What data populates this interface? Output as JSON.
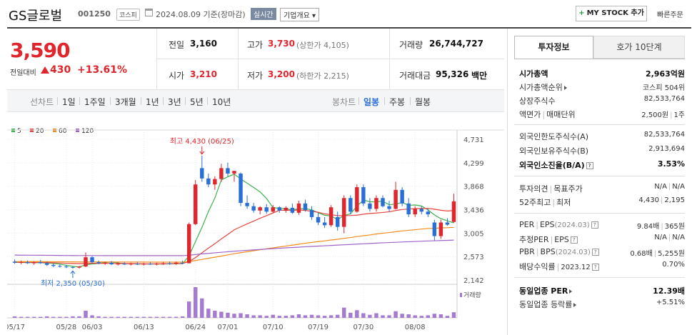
{
  "header": {
    "title": "GS글로벌",
    "code": "001250",
    "market": "코스피",
    "date_text": "2024.08.09 기준(장마감)",
    "realtime_label": "실시간",
    "company_label": "기업개요 ▾",
    "mystock_label": "MY STOCK 추가",
    "quick_order_label": "빠른주문"
  },
  "price": {
    "current": "3,590",
    "prev_label": "전일대비",
    "change": "430",
    "change_pct": "+13.61%"
  },
  "summary": {
    "prev_close_label": "전일",
    "prev_close": "3,160",
    "high_label": "고가",
    "high": "3,730",
    "upper_limit": "(상한가 4,105)",
    "volume_label": "거래량",
    "volume": "26,744,727",
    "open_label": "시가",
    "open": "3,210",
    "low_label": "저가",
    "low": "3,200",
    "lower_limit": "(하한가 2,215)",
    "amount_label": "거래대금",
    "amount": "95,326",
    "amount_unit": "백만"
  },
  "period_bar": {
    "line_label": "선차트",
    "periods": [
      "1일",
      "1주일",
      "3개월",
      "1년",
      "3년",
      "5년",
      "10년"
    ],
    "candle_label": "봉차트",
    "candles": [
      "일봉",
      "주봉",
      "월봉"
    ],
    "active_candle": "일봉"
  },
  "legend": [
    {
      "name": "5",
      "color": "#3cb44b"
    },
    {
      "name": "20",
      "color": "#e6443c"
    },
    {
      "name": "60",
      "color": "#f08c1e"
    },
    {
      "name": "120",
      "color": "#a064c8"
    }
  ],
  "chart_data": {
    "type": "candlestick",
    "y_ticks": [
      "4,731",
      "4,299",
      "3,868",
      "3,436",
      "3,005",
      "2,573",
      "2,142"
    ],
    "ylim": [
      2142,
      4731
    ],
    "x_ticks": [
      "05/17",
      "05/28",
      "06/03",
      "06/13",
      "06/24",
      "07/01",
      "07/10",
      "07/19",
      "07/30",
      "08/08"
    ],
    "high_annotation": "최고 4,430 (06/25)",
    "low_annotation": "최저 2,350 (05/30)",
    "volume_legend": "거래량",
    "up_color": "#e0252c",
    "down_color": "#2a6fd6",
    "candles": [
      {
        "o": 2480,
        "h": 2520,
        "l": 2440,
        "c": 2460
      },
      {
        "o": 2460,
        "h": 2500,
        "l": 2430,
        "c": 2470
      },
      {
        "o": 2470,
        "h": 2500,
        "l": 2440,
        "c": 2450
      },
      {
        "o": 2450,
        "h": 2490,
        "l": 2420,
        "c": 2470
      },
      {
        "o": 2470,
        "h": 2510,
        "l": 2440,
        "c": 2450
      },
      {
        "o": 2450,
        "h": 2480,
        "l": 2400,
        "c": 2420
      },
      {
        "o": 2420,
        "h": 2450,
        "l": 2380,
        "c": 2400
      },
      {
        "o": 2400,
        "h": 2430,
        "l": 2370,
        "c": 2390
      },
      {
        "o": 2390,
        "h": 2420,
        "l": 2360,
        "c": 2380
      },
      {
        "o": 2380,
        "h": 2400,
        "l": 2350,
        "c": 2370
      },
      {
        "o": 2370,
        "h": 2400,
        "l": 2350,
        "c": 2390
      },
      {
        "o": 2390,
        "h": 2650,
        "l": 2380,
        "c": 2560
      },
      {
        "o": 2560,
        "h": 2580,
        "l": 2450,
        "c": 2470
      },
      {
        "o": 2470,
        "h": 2500,
        "l": 2430,
        "c": 2450
      },
      {
        "o": 2450,
        "h": 2480,
        "l": 2420,
        "c": 2460
      },
      {
        "o": 2460,
        "h": 2490,
        "l": 2420,
        "c": 2430
      },
      {
        "o": 2430,
        "h": 2470,
        "l": 2410,
        "c": 2440
      },
      {
        "o": 2440,
        "h": 2470,
        "l": 2420,
        "c": 2430
      },
      {
        "o": 2430,
        "h": 2460,
        "l": 2410,
        "c": 2440
      },
      {
        "o": 2440,
        "h": 2470,
        "l": 2420,
        "c": 2430
      },
      {
        "o": 2430,
        "h": 2460,
        "l": 2410,
        "c": 2440
      },
      {
        "o": 2440,
        "h": 2470,
        "l": 2420,
        "c": 2430
      },
      {
        "o": 2430,
        "h": 2460,
        "l": 2410,
        "c": 2440
      },
      {
        "o": 2440,
        "h": 2470,
        "l": 2420,
        "c": 2450
      },
      {
        "o": 2450,
        "h": 2480,
        "l": 2420,
        "c": 2440
      },
      {
        "o": 2440,
        "h": 2480,
        "l": 2420,
        "c": 2460
      },
      {
        "o": 2460,
        "h": 2500,
        "l": 2430,
        "c": 2450
      },
      {
        "o": 2450,
        "h": 3200,
        "l": 2450,
        "c": 3170
      },
      {
        "o": 3170,
        "h": 3980,
        "l": 3150,
        "c": 3900
      },
      {
        "o": 4200,
        "h": 4430,
        "l": 3950,
        "c": 4010
      },
      {
        "o": 4010,
        "h": 4100,
        "l": 3850,
        "c": 3900
      },
      {
        "o": 3900,
        "h": 4050,
        "l": 3800,
        "c": 4000
      },
      {
        "o": 4000,
        "h": 4280,
        "l": 3950,
        "c": 4200
      },
      {
        "o": 4200,
        "h": 4300,
        "l": 4050,
        "c": 4100
      },
      {
        "o": 4100,
        "h": 4150,
        "l": 3950,
        "c": 4150
      },
      {
        "o": 4100,
        "h": 4120,
        "l": 3500,
        "c": 3560
      },
      {
        "o": 3560,
        "h": 3700,
        "l": 3450,
        "c": 3500
      },
      {
        "o": 3500,
        "h": 3560,
        "l": 3380,
        "c": 3420
      },
      {
        "o": 3420,
        "h": 3500,
        "l": 3350,
        "c": 3480
      },
      {
        "o": 3480,
        "h": 3540,
        "l": 3360,
        "c": 3400
      },
      {
        "o": 3400,
        "h": 3520,
        "l": 3380,
        "c": 3480
      },
      {
        "o": 3480,
        "h": 3500,
        "l": 3380,
        "c": 3420
      },
      {
        "o": 3420,
        "h": 3500,
        "l": 3380,
        "c": 3470
      },
      {
        "o": 3470,
        "h": 3550,
        "l": 3360,
        "c": 3380
      },
      {
        "o": 3380,
        "h": 3600,
        "l": 3340,
        "c": 3550
      },
      {
        "o": 3550,
        "h": 3620,
        "l": 3400,
        "c": 3430
      },
      {
        "o": 3430,
        "h": 3500,
        "l": 3250,
        "c": 3300
      },
      {
        "o": 3300,
        "h": 3380,
        "l": 3150,
        "c": 3200
      },
      {
        "o": 3200,
        "h": 3300,
        "l": 3100,
        "c": 3150
      },
      {
        "o": 3150,
        "h": 3520,
        "l": 3120,
        "c": 3480
      },
      {
        "o": 3300,
        "h": 3400,
        "l": 3050,
        "c": 3120
      },
      {
        "o": 3120,
        "h": 3700,
        "l": 3000,
        "c": 3650
      },
      {
        "o": 3650,
        "h": 3700,
        "l": 3350,
        "c": 3400
      },
      {
        "o": 3400,
        "h": 3900,
        "l": 3380,
        "c": 3850
      },
      {
        "o": 3850,
        "h": 3900,
        "l": 3500,
        "c": 3550
      },
      {
        "o": 3550,
        "h": 3650,
        "l": 3400,
        "c": 3450
      },
      {
        "o": 3450,
        "h": 3700,
        "l": 3400,
        "c": 3650
      },
      {
        "o": 3650,
        "h": 3700,
        "l": 3480,
        "c": 3500
      },
      {
        "o": 3500,
        "h": 3600,
        "l": 3400,
        "c": 3450
      },
      {
        "o": 3450,
        "h": 3950,
        "l": 3440,
        "c": 3800
      },
      {
        "o": 3800,
        "h": 3850,
        "l": 3500,
        "c": 3550
      },
      {
        "o": 3550,
        "h": 3650,
        "l": 3300,
        "c": 3350
      },
      {
        "o": 3350,
        "h": 3500,
        "l": 3300,
        "c": 3450
      },
      {
        "o": 3450,
        "h": 3500,
        "l": 3350,
        "c": 3400
      },
      {
        "o": 3400,
        "h": 3450,
        "l": 3300,
        "c": 3350
      },
      {
        "o": 3200,
        "h": 3250,
        "l": 2870,
        "c": 2950
      },
      {
        "o": 2950,
        "h": 3250,
        "l": 2900,
        "c": 3200
      },
      {
        "o": 3200,
        "h": 3280,
        "l": 3140,
        "c": 3160
      },
      {
        "o": 3210,
        "h": 3730,
        "l": 3200,
        "c": 3590
      }
    ],
    "ma": {
      "ma5": [
        2465,
        2463,
        2462,
        2460,
        2461,
        2456,
        2448,
        2434,
        2413,
        2393,
        2384,
        2420,
        2438,
        2448,
        2464,
        2474,
        2455,
        2444,
        2440,
        2436,
        2436,
        2436,
        2436,
        2436,
        2439,
        2441,
        2442,
        2586,
        2848,
        3110,
        3400,
        3651,
        3982,
        4042,
        4090,
        4002,
        3922,
        3846,
        3762,
        3642,
        3474,
        3461,
        3450,
        3432,
        3452,
        3456,
        3432,
        3380,
        3333,
        3322,
        3252,
        3330,
        3360,
        3500,
        3613,
        3581,
        3581,
        3593,
        3526,
        3540,
        3568,
        3516,
        3522,
        3504,
        3432,
        3340,
        3270,
        3232,
        3191
      ],
      "ma20": [
        2470,
        2468,
        2467,
        2465,
        2464,
        2462,
        2459,
        2455,
        2450,
        2446,
        2443,
        2448,
        2449,
        2449,
        2448,
        2447,
        2445,
        2444,
        2443,
        2441,
        2439,
        2438,
        2439,
        2439,
        2442,
        2445,
        2446,
        2481,
        2554,
        2642,
        2729,
        2810,
        2898,
        2980,
        3065,
        3121,
        3175,
        3226,
        3278,
        3325,
        3375,
        3424,
        3426,
        3423,
        3430,
        3423,
        3405,
        3390,
        3359,
        3344,
        3326,
        3326,
        3329,
        3335,
        3353,
        3366,
        3374,
        3385,
        3398,
        3420,
        3439,
        3447,
        3455,
        3458,
        3460,
        3445,
        3425,
        3412,
        3420
      ],
      "ma60": [
        2480,
        2480,
        2480,
        2480,
        2480,
        2479,
        2478,
        2477,
        2476,
        2475,
        2474,
        2474,
        2474,
        2474,
        2474,
        2474,
        2473,
        2473,
        2472,
        2472,
        2472,
        2471,
        2471,
        2471,
        2471,
        2471,
        2471,
        2482,
        2500,
        2521,
        2541,
        2561,
        2582,
        2604,
        2626,
        2645,
        2663,
        2681,
        2699,
        2716,
        2733,
        2750,
        2767,
        2783,
        2801,
        2818,
        2834,
        2848,
        2862,
        2878,
        2891,
        2908,
        2923,
        2941,
        2957,
        2971,
        2988,
        3002,
        3015,
        3031,
        3045,
        3056,
        3068,
        3079,
        3089,
        3094,
        3100,
        3104,
        3110
      ],
      "ma120": [
        2600,
        2599,
        2598,
        2598,
        2597,
        2596,
        2595,
        2594,
        2593,
        2592,
        2591,
        2591,
        2591,
        2591,
        2590,
        2590,
        2590,
        2590,
        2590,
        2590,
        2590,
        2590,
        2590,
        2590,
        2590,
        2590,
        2590,
        2598,
        2610,
        2622,
        2632,
        2642,
        2652,
        2662,
        2672,
        2680,
        2688,
        2696,
        2704,
        2712,
        2719,
        2726,
        2733,
        2740,
        2747,
        2754,
        2760,
        2766,
        2772,
        2778,
        2784,
        2790,
        2796,
        2802,
        2808,
        2814,
        2820,
        2826,
        2831,
        2836,
        2841,
        2846,
        2851,
        2856,
        2861,
        2864,
        2868,
        2871,
        2876
      ]
    },
    "volume": [
      3,
      2,
      2,
      2,
      2,
      3,
      2,
      2,
      2,
      3,
      3,
      14,
      5,
      3,
      2,
      2,
      2,
      2,
      2,
      2,
      2,
      2,
      2,
      2,
      2,
      2,
      3,
      32,
      60,
      38,
      18,
      14,
      12,
      10,
      8,
      9,
      7,
      5,
      5,
      4,
      6,
      4,
      4,
      5,
      7,
      5,
      6,
      5,
      4,
      5,
      6,
      20,
      10,
      15,
      9,
      6,
      9,
      5,
      5,
      13,
      8,
      7,
      5,
      4,
      5,
      8,
      7,
      4,
      11
    ]
  },
  "right_panel": {
    "tab1": "투자정보",
    "tab2": "호가 10단계",
    "rows": {
      "market_cap_label": "시가총액",
      "market_cap": "2,963억원",
      "market_cap_rank_label": "시가총액순위",
      "market_cap_rank": "코스피 504위",
      "shares_label": "상장주식수",
      "shares": "82,533,764",
      "par_label": "액면가",
      "trade_unit_label": "매매단위",
      "par": "2,500원",
      "trade_unit": "1주",
      "foreign_limit_label": "외국인한도주식수(A)",
      "foreign_limit": "82,533,764",
      "foreign_hold_label": "외국인보유주식수(B)",
      "foreign_hold": "2,913,694",
      "foreign_ratio_label": "외국인소진율(B/A)",
      "foreign_ratio": "3.53%",
      "opinion_label": "투자의견",
      "target_label": "목표주가",
      "opinion": "N/A",
      "target": "N/A",
      "w52_label": "52주최고",
      "w52_low_label": "최저",
      "w52_high": "4,430",
      "w52_low": "2,195",
      "per_label": "PER",
      "eps_label": "EPS",
      "per_eps_year": "(2024.03)",
      "per": "9.84배",
      "eps": "365원",
      "est_per_label": "추정PER",
      "est_eps_label": "EPS",
      "est_per": "N/A",
      "est_eps": "N/A",
      "pbr_label": "PBR",
      "bps_label": "BPS",
      "pbr_bps_year": "(2024.03)",
      "pbr": "0.68배",
      "bps": "5,255원",
      "dividend_label": "배당수익률",
      "dividend_year": "2023.12",
      "dividend": "0.70%",
      "sector_per_label": "동일업종 PER",
      "sector_per": "12.39배",
      "sector_chg_label": "동일업종 등락률",
      "sector_chg": "+5.51%"
    }
  }
}
